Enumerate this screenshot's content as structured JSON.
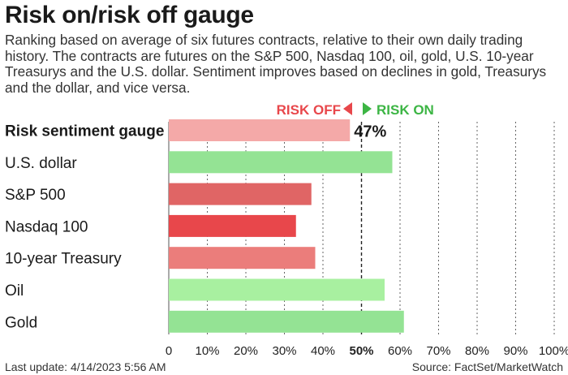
{
  "title": "Risk on/risk off gauge",
  "subtitle": "Ranking based on average of six futures contracts, relative to their own daily trading history. The contracts are futures on the S&P 500, Nasdaq 100, oil, gold, U.S. 10-year Treasurys and the U.S. dollar. Sentiment improves based on declines in gold, Treasurys and the dollar, and vice versa.",
  "legend": {
    "risk_off": "RISK OFF",
    "risk_on": "RISK ON",
    "risk_off_color": "#e8474b",
    "risk_on_color": "#3cb544"
  },
  "footer": {
    "last_update": "Last update: 4/14/2023 5:56 AM",
    "source": "Source: FactSet/MarketWatch"
  },
  "chart_data": {
    "type": "bar",
    "orientation": "horizontal",
    "categories": [
      "Risk sentiment gauge",
      "U.S. dollar",
      "S&P 500",
      "Nasdaq 100",
      "10-year Treasury",
      "Oil",
      "Gold"
    ],
    "values": [
      47,
      58,
      37,
      33,
      38,
      56,
      61
    ],
    "colors": [
      "#f4a9a8",
      "#94e394",
      "#e06565",
      "#e8474b",
      "#eb7d7b",
      "#a8f0a0",
      "#94e394"
    ],
    "value_labels": [
      "47%",
      "",
      "",
      "",
      "",
      "",
      ""
    ],
    "xlim": [
      0,
      100
    ],
    "xticks": [
      "0",
      "10%",
      "20%",
      "30%",
      "40%",
      "50%",
      "60%",
      "70%",
      "80%",
      "90%",
      "100%"
    ],
    "xtick_values": [
      0,
      10,
      20,
      30,
      40,
      50,
      60,
      70,
      80,
      90,
      100
    ],
    "grid": "vertical dotted",
    "midline": 50
  }
}
